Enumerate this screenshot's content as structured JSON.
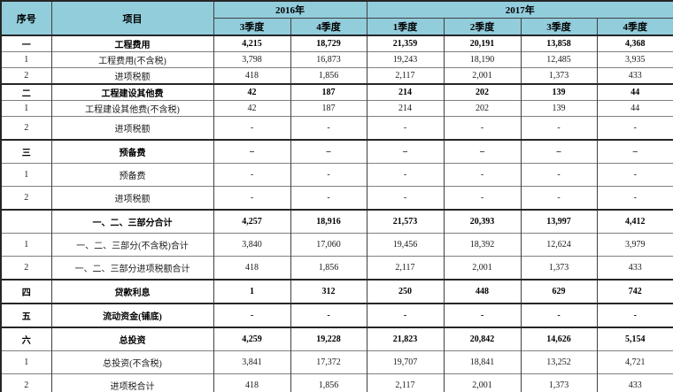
{
  "colors": {
    "header_bg": "#92CDDC",
    "border_dark": "#262626",
    "border_mid": "#404040",
    "border_light": "#808080"
  },
  "table": {
    "header": {
      "col_no": "序号",
      "col_item": "项目",
      "year_2016": "2016年",
      "year_2017": "2017年",
      "quarters": [
        "3季度",
        "4季度",
        "1季度",
        "2季度",
        "3季度",
        "4季度"
      ]
    },
    "rows": [
      {
        "no": "一",
        "item": "工程费用",
        "values": [
          "4,215",
          "18,729",
          "21,359",
          "20,191",
          "13,858",
          "4,368"
        ],
        "section": true,
        "compact": true
      },
      {
        "no": "1",
        "item": "工程费用(不含税)",
        "values": [
          "3,798",
          "16,873",
          "19,243",
          "18,190",
          "12,485",
          "3,935"
        ],
        "section": false,
        "compact": true
      },
      {
        "no": "2",
        "item": "进项税额",
        "values": [
          "418",
          "1,856",
          "2,117",
          "2,001",
          "1,373",
          "433"
        ],
        "section": false,
        "compact": true
      },
      {
        "no": "二",
        "item": "工程建设其他费",
        "values": [
          "42",
          "187",
          "214",
          "202",
          "139",
          "44"
        ],
        "section": true,
        "compact": true
      },
      {
        "no": "1",
        "item": "工程建设其他费(不含税)",
        "values": [
          "42",
          "187",
          "214",
          "202",
          "139",
          "44"
        ],
        "section": false,
        "compact": true
      },
      {
        "no": "2",
        "item": "进项税额",
        "values": [
          "-",
          "-",
          "-",
          "-",
          "-",
          "-"
        ],
        "section": false,
        "compact": false
      },
      {
        "no": "三",
        "item": "预备费",
        "values": [
          "–",
          "–",
          "–",
          "–",
          "–",
          "–"
        ],
        "section": true,
        "compact": false
      },
      {
        "no": "1",
        "item": "预备费",
        "values": [
          "-",
          "-",
          "-",
          "-",
          "-",
          "-"
        ],
        "section": false,
        "compact": false
      },
      {
        "no": "2",
        "item": "进项税额",
        "values": [
          "-",
          "-",
          "-",
          "-",
          "-",
          "-"
        ],
        "section": false,
        "compact": false
      },
      {
        "no": "",
        "item": "一、二、三部分合计",
        "values": [
          "4,257",
          "18,916",
          "21,573",
          "20,393",
          "13,997",
          "4,412"
        ],
        "section": true,
        "compact": false
      },
      {
        "no": "1",
        "item": "一、二、三部分(不含税)合计",
        "values": [
          "3,840",
          "17,060",
          "19,456",
          "18,392",
          "12,624",
          "3,979"
        ],
        "section": false,
        "compact": false
      },
      {
        "no": "2",
        "item": "一、二、三部分进项税额合计",
        "values": [
          "418",
          "1,856",
          "2,117",
          "2,001",
          "1,373",
          "433"
        ],
        "section": false,
        "compact": false
      },
      {
        "no": "四",
        "item": "贷款利息",
        "values": [
          "1",
          "312",
          "250",
          "448",
          "629",
          "742"
        ],
        "section": true,
        "compact": false
      },
      {
        "no": "五",
        "item": "流动资金(铺底)",
        "values": [
          "-",
          "-",
          "-",
          "-",
          "-",
          "-"
        ],
        "section": true,
        "compact": false
      },
      {
        "no": "六",
        "item": "总投资",
        "values": [
          "4,259",
          "19,228",
          "21,823",
          "20,842",
          "14,626",
          "5,154"
        ],
        "section": true,
        "compact": false
      },
      {
        "no": "1",
        "item": "总投资(不含税)",
        "values": [
          "3,841",
          "17,372",
          "19,707",
          "18,841",
          "13,252",
          "4,721"
        ],
        "section": false,
        "compact": false
      },
      {
        "no": "2",
        "item": "进项税合计",
        "values": [
          "418",
          "1,856",
          "2,117",
          "2,001",
          "1,373",
          "433"
        ],
        "section": false,
        "compact": false
      }
    ]
  }
}
